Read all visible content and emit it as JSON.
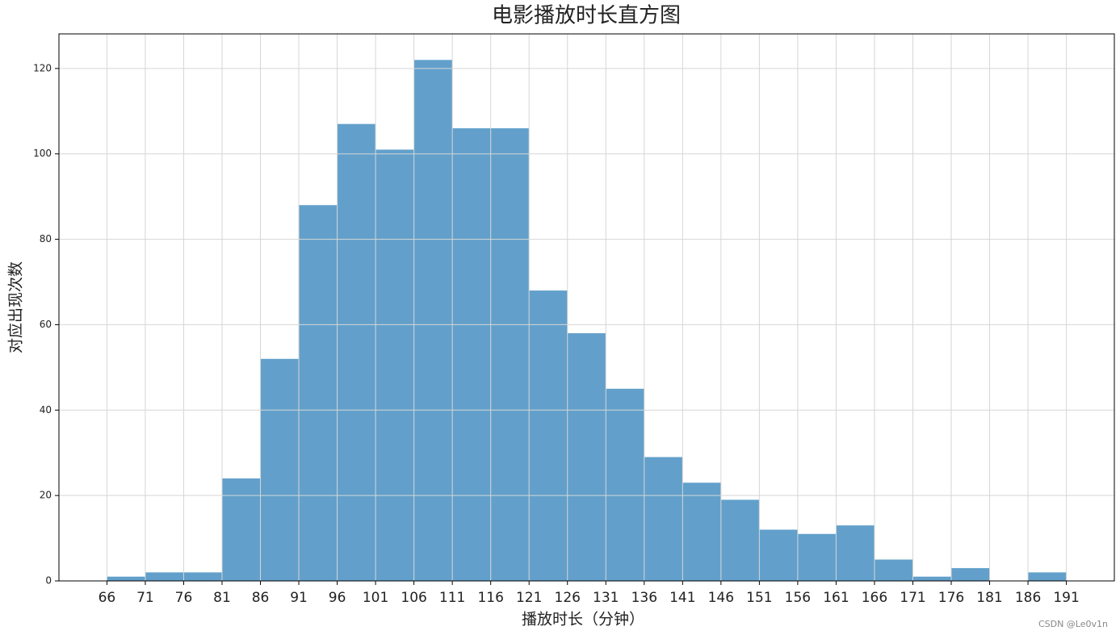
{
  "chart_data": {
    "type": "histogram",
    "title": "电影播放时长直方图",
    "xlabel": "播放时长（分钟）",
    "ylabel": "对应出现次数",
    "bins": [
      66,
      71,
      76,
      81,
      86,
      91,
      96,
      101,
      106,
      111,
      116,
      121,
      126,
      131,
      136,
      141,
      146,
      151,
      156,
      161,
      166,
      171,
      176,
      181,
      186,
      191
    ],
    "values": [
      1,
      2,
      2,
      24,
      52,
      88,
      107,
      101,
      122,
      106,
      106,
      68,
      58,
      45,
      29,
      23,
      19,
      12,
      11,
      13,
      5,
      1,
      3,
      0,
      2
    ],
    "color": "#62a0cb",
    "xlim": [
      59.75,
      197.25
    ],
    "ylim": [
      0,
      128.1
    ],
    "xticks": [
      66,
      71,
      76,
      81,
      86,
      91,
      96,
      101,
      106,
      111,
      116,
      121,
      126,
      131,
      136,
      141,
      146,
      151,
      156,
      161,
      166,
      171,
      176,
      181,
      186,
      191
    ],
    "yticks": [
      0,
      20,
      40,
      60,
      80,
      100,
      120
    ],
    "grid": true,
    "watermark": "CSDN @Le0v1n"
  }
}
